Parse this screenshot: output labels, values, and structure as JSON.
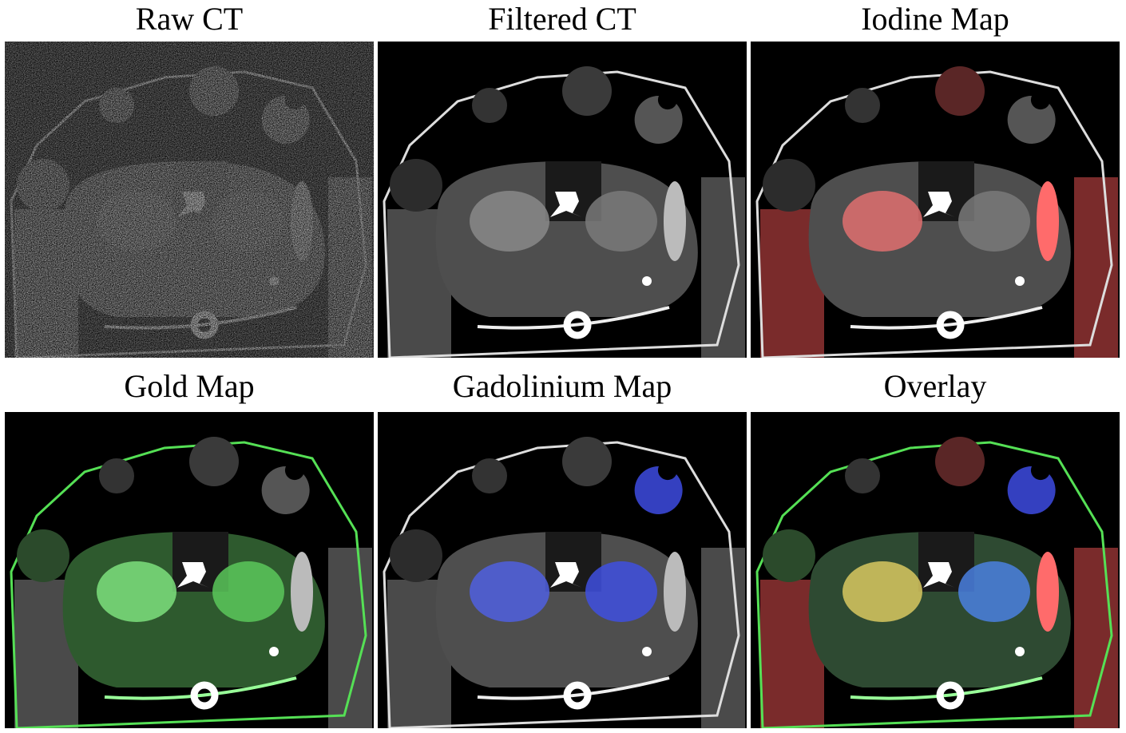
{
  "panels": [
    {
      "title": "Raw CT"
    },
    {
      "title": "Filtered CT"
    },
    {
      "title": "Iodine Map"
    },
    {
      "title": "Gold Map"
    },
    {
      "title": "Gadolinium Map"
    },
    {
      "title": "Overlay"
    }
  ]
}
